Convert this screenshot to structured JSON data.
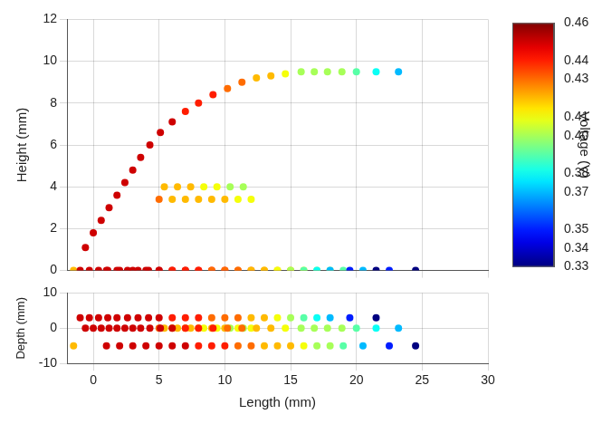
{
  "chart_data": {
    "type": "scatter",
    "x_label": "Length (mm)",
    "y_label": "Height (mm)",
    "z_label": "Depth (mm)",
    "xlim": [
      -2,
      30
    ],
    "xticks": [
      0,
      5,
      10,
      15,
      20,
      25,
      30
    ],
    "ylim": [
      0,
      12
    ],
    "yticks": [
      0,
      2,
      4,
      6,
      8,
      10,
      12
    ],
    "zlim": [
      -10,
      10
    ],
    "zticks": [
      -10,
      0,
      10
    ],
    "grid": true,
    "marker": "circle",
    "series": [
      {
        "length": [
          -0.6,
          0.0,
          0.6,
          1.2,
          1.8,
          2.4,
          3.0,
          3.6,
          4.3,
          5.1,
          6.0,
          7.0,
          8.0,
          9.1,
          10.2,
          11.3,
          12.4,
          13.5,
          14.6,
          15.8,
          16.8,
          17.8,
          18.9,
          20.0,
          21.5,
          23.2
        ],
        "height": [
          1.1,
          1.8,
          2.4,
          3.0,
          3.6,
          4.2,
          4.8,
          5.4,
          6.0,
          6.6,
          7.1,
          7.6,
          8.0,
          8.4,
          8.7,
          9.0,
          9.2,
          9.3,
          9.4,
          9.5,
          9.5,
          9.5,
          9.5,
          9.5,
          9.5,
          9.5
        ],
        "depth": [
          0,
          0,
          0,
          0,
          0,
          0,
          0,
          0,
          0,
          0,
          0,
          0,
          0,
          0,
          0,
          0,
          0,
          0,
          0,
          0,
          0,
          0,
          0,
          0,
          0,
          0
        ],
        "voltage": [
          0.45,
          0.45,
          0.45,
          0.45,
          0.45,
          0.45,
          0.45,
          0.45,
          0.45,
          0.45,
          0.45,
          0.44,
          0.44,
          0.44,
          0.43,
          0.43,
          0.42,
          0.42,
          0.41,
          0.4,
          0.4,
          0.4,
          0.4,
          0.39,
          0.38,
          0.37
        ]
      },
      {
        "length": [
          5.4,
          6.4,
          7.4,
          8.4,
          9.4,
          10.4,
          11.4
        ],
        "height": [
          4.0,
          4.0,
          4.0,
          4.0,
          4.0,
          4.0,
          4.0
        ],
        "depth": [
          0,
          0,
          0,
          0,
          0,
          0,
          0
        ],
        "voltage": [
          0.42,
          0.42,
          0.42,
          0.41,
          0.41,
          0.4,
          0.4
        ]
      },
      {
        "length": [
          5.0,
          6.0,
          7.0,
          8.0,
          9.0,
          10.0,
          11.0,
          12.0
        ],
        "height": [
          3.4,
          3.4,
          3.4,
          3.4,
          3.4,
          3.4,
          3.4,
          3.4
        ],
        "depth": [
          0,
          0,
          0,
          0,
          0,
          0,
          0,
          0
        ],
        "voltage": [
          0.43,
          0.42,
          0.42,
          0.42,
          0.42,
          0.42,
          0.41,
          0.41
        ]
      },
      {
        "length": [
          -1.0,
          -0.3,
          0.4,
          1.1,
          1.8,
          2.6,
          3.4,
          4.2,
          5.0,
          6.0,
          7.0,
          8.0,
          9.0,
          10.0,
          11.0,
          12.0,
          13.0,
          14.0,
          15.0,
          16.0,
          17.0,
          18.0,
          19.5,
          21.5
        ],
        "height": [
          0,
          0,
          0,
          0,
          0,
          0,
          0,
          0,
          0,
          0,
          0,
          0,
          0,
          0,
          0,
          0,
          0,
          0,
          0,
          0,
          0,
          0,
          0,
          0
        ],
        "depth": [
          3,
          3,
          3,
          3,
          3,
          3,
          3,
          3,
          3,
          3,
          3,
          3,
          3,
          3,
          3,
          3,
          3,
          3,
          3,
          3,
          3,
          3,
          3,
          3
        ],
        "voltage": [
          0.45,
          0.45,
          0.45,
          0.45,
          0.45,
          0.45,
          0.45,
          0.45,
          0.45,
          0.44,
          0.44,
          0.44,
          0.43,
          0.43,
          0.43,
          0.42,
          0.42,
          0.41,
          0.4,
          0.39,
          0.38,
          0.37,
          0.35,
          0.33
        ]
      },
      {
        "length": [
          -1.5,
          1.0,
          2.0,
          3.0,
          4.0,
          5.0,
          6.0,
          7.0,
          8.0,
          9.0,
          10.0,
          11.0,
          12.0,
          13.0,
          14.0,
          15.0,
          16.0,
          17.0,
          18.0,
          19.0,
          20.5,
          22.5,
          24.5
        ],
        "height": [
          0,
          0,
          0,
          0,
          0,
          0,
          0,
          0,
          0,
          0,
          0,
          0,
          0,
          0,
          0,
          0,
          0,
          0,
          0,
          0,
          0,
          0,
          0
        ],
        "depth": [
          -5,
          -5,
          -5,
          -5,
          -5,
          -5,
          -5,
          -5,
          -5,
          -5,
          -5,
          -5,
          -5,
          -5,
          -5,
          -5,
          -5,
          -5,
          -5,
          -5,
          -5,
          -5,
          -5
        ],
        "voltage": [
          0.42,
          0.45,
          0.45,
          0.45,
          0.45,
          0.45,
          0.45,
          0.45,
          0.44,
          0.44,
          0.44,
          0.43,
          0.43,
          0.42,
          0.42,
          0.42,
          0.41,
          0.4,
          0.4,
          0.39,
          0.37,
          0.35,
          0.33
        ]
      }
    ],
    "colorbar": {
      "label": "Voltage (V)",
      "range": [
        0.33,
        0.46
      ],
      "ticks": [
        0.33,
        0.34,
        0.35,
        0.37,
        0.38,
        {
          "value": 0.4,
          "label": "0.40"
        },
        0.41,
        0.43,
        0.44,
        0.46
      ]
    }
  }
}
